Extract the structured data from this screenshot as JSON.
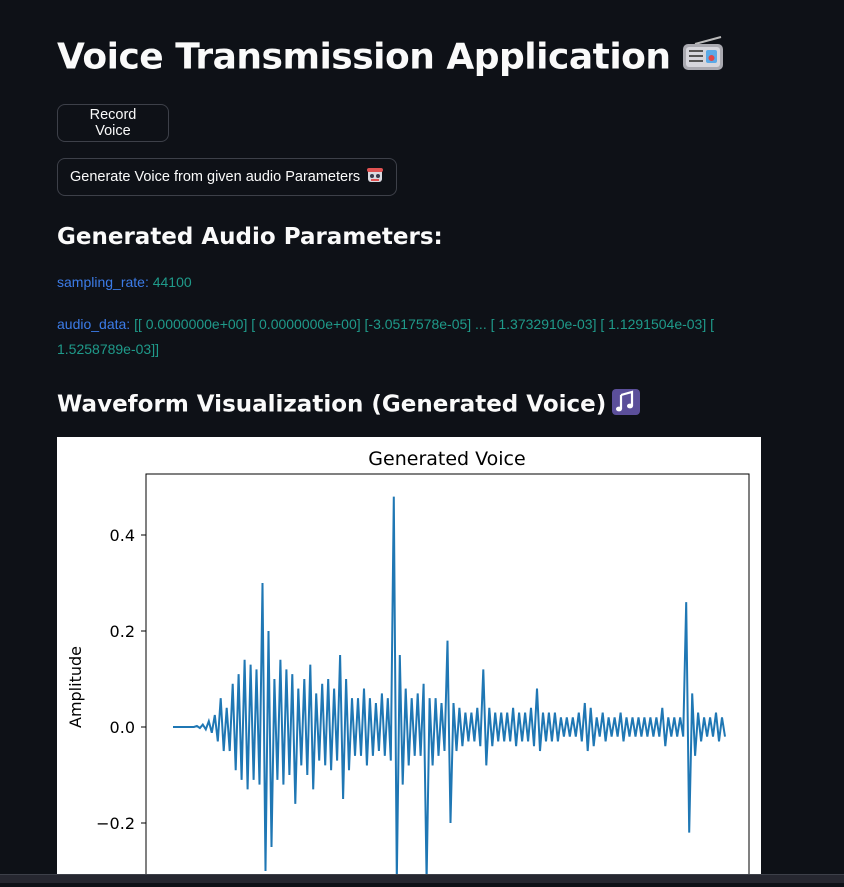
{
  "header": {
    "title": "Voice Transmission Application",
    "title_icon": "radio-icon"
  },
  "buttons": {
    "record": "Record Voice",
    "generate": "Generate Voice from given audio Parameters",
    "generate_icon": "robot-icon"
  },
  "params_section": {
    "heading": "Generated Audio Parameters:",
    "sampling_rate_label": "sampling_rate:",
    "sampling_rate_value": "44100",
    "audio_data_label": "audio_data:",
    "audio_data_value": "[[ 0.0000000e+00] [ 0.0000000e+00] [-3.0517578e-05] ... [ 1.3732910e-03] [ 1.1291504e-03] [ 1.5258789e-03]]"
  },
  "waveform_section": {
    "heading": "Waveform Visualization (Generated Voice)",
    "heading_icon": "music-notes-icon"
  },
  "colors": {
    "background": "#0e1117",
    "key_blue": "#3c7ce8",
    "value_teal": "#1f9a8a",
    "line": "#1f77b4"
  },
  "chart_data": {
    "type": "line",
    "title": "Generated Voice",
    "xlabel": "",
    "ylabel": "Amplitude",
    "ylim": [
      -0.32,
      0.52
    ],
    "yticks": [
      "0.4",
      "0.2",
      "0.0",
      "−0.2"
    ],
    "ytick_values": [
      0.4,
      0.2,
      0.0,
      -0.2
    ],
    "series": [
      {
        "values": [
          0,
          0,
          0,
          0,
          0.002,
          0.005,
          0.012,
          0.025,
          0.06,
          0.04,
          0.09,
          0.11,
          0.14,
          0.13,
          0.12,
          0.3,
          0.2,
          0.1,
          0.14,
          0.12,
          0.11,
          0.08,
          0.1,
          0.13,
          0.07,
          0.09,
          0.1,
          0.08,
          0.15,
          0.1,
          0.06,
          0.06,
          0.08,
          0.06,
          0.05,
          0.07,
          0.06,
          0.48,
          0.15,
          0.08,
          0.06,
          0.07,
          0.09,
          0.06,
          0.06,
          0.05,
          0.18,
          0.05,
          0.04,
          0.03,
          0.03,
          0.04,
          0.12,
          0.04,
          0.03,
          0.03,
          0.03,
          0.04,
          0.03,
          0.03,
          0.04,
          0.08,
          0.03,
          0.03,
          0.03,
          0.02,
          0.02,
          0.02,
          0.03,
          0.05,
          0.04,
          0.02,
          0.03,
          0.02,
          0.02,
          0.03,
          0.02,
          0.02,
          0.02,
          0.02,
          0.02,
          0.02,
          0.04,
          0.02,
          0.02,
          0.02,
          0.26,
          0.07,
          0.03,
          0.02,
          0.02,
          0.03,
          0.02
        ]
      }
    ],
    "neg_values": [
      0,
      0,
      0,
      0,
      -0.002,
      -0.005,
      -0.012,
      -0.03,
      -0.05,
      -0.05,
      -0.09,
      -0.11,
      -0.13,
      -0.11,
      -0.12,
      -0.3,
      -0.25,
      -0.11,
      -0.12,
      -0.1,
      -0.16,
      -0.08,
      -0.1,
      -0.13,
      -0.07,
      -0.08,
      -0.09,
      -0.07,
      -0.15,
      -0.09,
      -0.06,
      -0.06,
      -0.08,
      -0.06,
      -0.05,
      -0.06,
      -0.07,
      -0.32,
      -0.12,
      -0.08,
      -0.06,
      -0.06,
      -0.32,
      -0.08,
      -0.06,
      -0.05,
      -0.2,
      -0.05,
      -0.04,
      -0.03,
      -0.03,
      -0.04,
      -0.08,
      -0.04,
      -0.03,
      -0.03,
      -0.03,
      -0.04,
      -0.03,
      -0.03,
      -0.04,
      -0.05,
      -0.03,
      -0.03,
      -0.03,
      -0.02,
      -0.02,
      -0.02,
      -0.03,
      -0.05,
      -0.04,
      -0.02,
      -0.03,
      -0.02,
      -0.02,
      -0.03,
      -0.02,
      -0.02,
      -0.02,
      -0.02,
      -0.02,
      -0.02,
      -0.04,
      -0.02,
      -0.02,
      -0.02,
      -0.22,
      -0.06,
      -0.03,
      -0.02,
      -0.02,
      -0.03,
      -0.02
    ]
  }
}
